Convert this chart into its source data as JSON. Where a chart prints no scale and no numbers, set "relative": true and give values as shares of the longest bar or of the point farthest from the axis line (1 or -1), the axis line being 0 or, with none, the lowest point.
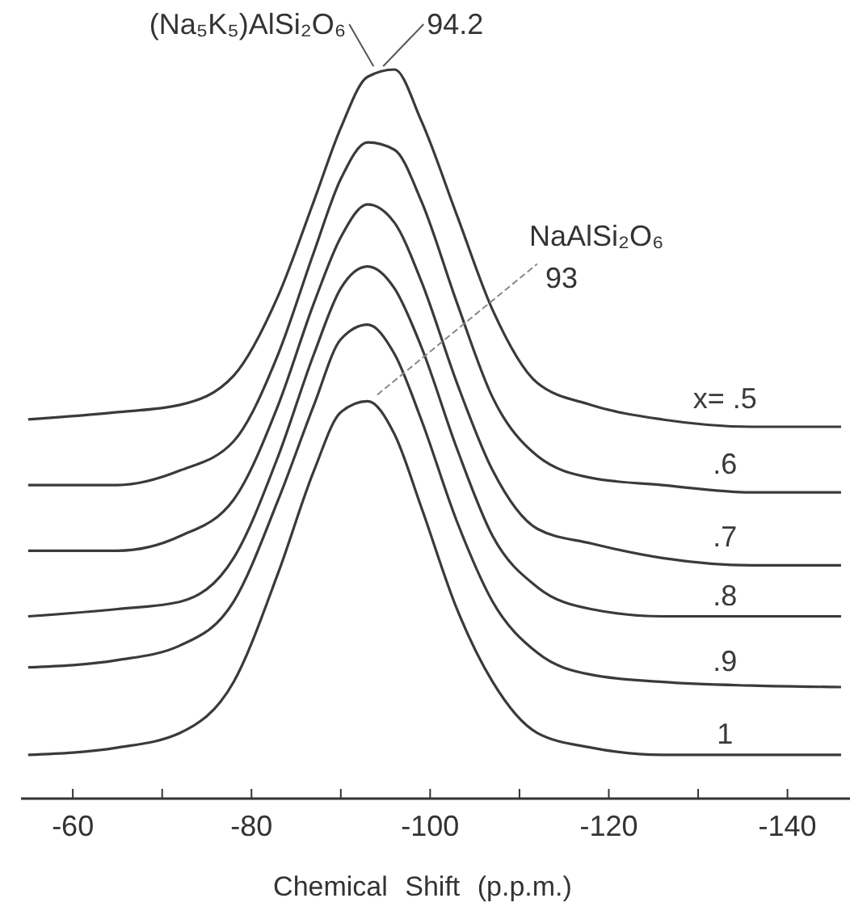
{
  "chart_data": {
    "type": "line",
    "relative": true,
    "xlabel": "Chemical Shift (p.p.m.)",
    "xlim": [
      -54.2,
      -147
    ],
    "xticks": [
      -60,
      {
        "value": -70,
        "label": null
      },
      -80,
      {
        "value": -90,
        "label": null
      },
      -100,
      {
        "value": -110,
        "label": null
      },
      -120,
      {
        "value": -130,
        "label": null
      },
      -140
    ],
    "x": [
      -55,
      -65,
      -72,
      -78,
      -83,
      -87,
      -90,
      -93,
      -96,
      -99,
      -103,
      -107,
      -112,
      -118,
      -126,
      -136,
      -146
    ],
    "series": [
      {
        "name": "x= .5",
        "color": "#3a3a3a",
        "values": [
          0.52,
          0.53,
          0.54,
          0.58,
          0.69,
          0.82,
          0.92,
          0.99,
          1.0,
          0.93,
          0.8,
          0.67,
          0.57,
          0.54,
          0.52,
          0.51,
          0.51
        ]
      },
      {
        "name": ".6",
        "color": "#3a3a3a",
        "values": [
          0.43,
          0.43,
          0.45,
          0.49,
          0.61,
          0.75,
          0.85,
          0.9,
          0.89,
          0.82,
          0.68,
          0.55,
          0.47,
          0.44,
          0.43,
          0.42,
          0.42
        ]
      },
      {
        "name": ".7",
        "color": "#3a3a3a",
        "values": [
          0.34,
          0.34,
          0.36,
          0.41,
          0.54,
          0.68,
          0.77,
          0.815,
          0.79,
          0.71,
          0.57,
          0.45,
          0.37,
          0.35,
          0.33,
          0.32,
          0.32
        ]
      },
      {
        "name": ".8",
        "color": "#3a3a3a",
        "values": [
          0.25,
          0.26,
          0.27,
          0.33,
          0.47,
          0.61,
          0.7,
          0.73,
          0.7,
          0.62,
          0.48,
          0.36,
          0.29,
          0.26,
          0.25,
          0.25,
          0.25
        ]
      },
      {
        "name": ".9",
        "color": "#3a3a3a",
        "values": [
          0.18,
          0.19,
          0.21,
          0.27,
          0.41,
          0.54,
          0.63,
          0.65,
          0.61,
          0.52,
          0.38,
          0.27,
          0.2,
          0.17,
          0.16,
          0.155,
          0.153
        ]
      },
      {
        "name": "1",
        "color": "#3a3a3a",
        "values": [
          0.06,
          0.07,
          0.09,
          0.16,
          0.31,
          0.45,
          0.53,
          0.545,
          0.5,
          0.4,
          0.26,
          0.16,
          0.09,
          0.07,
          0.06,
          0.06,
          0.06
        ]
      }
    ],
    "annotations": [
      "(Na₅K₅)AlSi₂O₆",
      {
        "text": "94.2",
        "x": -94.2,
        "y": 1.0
      },
      "NaAlSi₂O₆",
      {
        "text": "93",
        "x": -93,
        "y": 0.545
      }
    ]
  }
}
